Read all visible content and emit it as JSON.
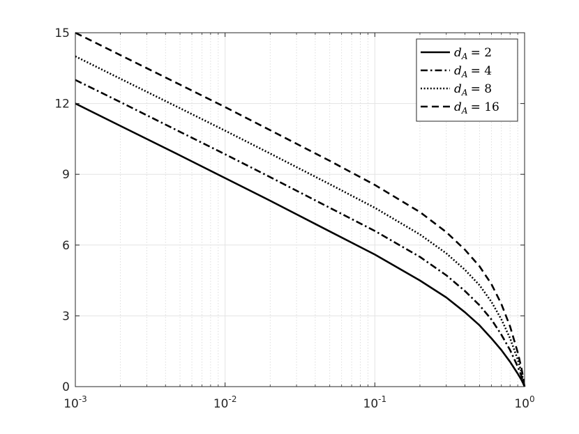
{
  "chart_data": {
    "type": "line",
    "title": "",
    "xlabel": "",
    "ylabel": "",
    "xscale": "log",
    "xlim": [
      0.001,
      1
    ],
    "ylim": [
      0,
      15
    ],
    "grid": true,
    "legend_position": "top-right",
    "x_ticks": [
      {
        "base": "10",
        "exp": "-3"
      },
      {
        "base": "10",
        "exp": "-2"
      },
      {
        "base": "10",
        "exp": "-1"
      },
      {
        "base": "10",
        "exp": "0"
      }
    ],
    "y_ticks": [
      "0",
      "3",
      "6",
      "9",
      "12",
      "15"
    ],
    "x": [
      0.001,
      0.002,
      0.005,
      0.01,
      0.02,
      0.05,
      0.1,
      0.2,
      0.3,
      0.4,
      0.5,
      0.6,
      0.7,
      0.8,
      0.9,
      0.95,
      0.98,
      0.995,
      1
    ],
    "series": [
      {
        "name": "d_A = 2",
        "legend_sub": "A",
        "legend_rhs": "= 2",
        "style": "solid",
        "values": [
          12.0,
          11.05,
          9.8,
          8.84,
          7.88,
          6.58,
          5.6,
          4.5,
          3.78,
          3.15,
          2.6,
          2.05,
          1.55,
          1.05,
          0.55,
          0.3,
          0.13,
          0.03,
          0.0
        ]
      },
      {
        "name": "d_A = 4",
        "legend_sub": "A",
        "legend_rhs": "= 4",
        "style": "dashdot",
        "values": [
          13.0,
          12.06,
          10.8,
          9.85,
          8.88,
          7.58,
          6.6,
          5.5,
          4.72,
          4.05,
          3.45,
          2.85,
          2.2,
          1.55,
          0.85,
          0.47,
          0.2,
          0.05,
          0.0
        ]
      },
      {
        "name": "d_A = 8",
        "legend_sub": "A",
        "legend_rhs": "= 8",
        "style": "dotted",
        "values": [
          14.0,
          13.05,
          11.8,
          10.85,
          9.88,
          8.58,
          7.58,
          6.45,
          5.65,
          4.95,
          4.3,
          3.6,
          2.85,
          2.05,
          1.15,
          0.64,
          0.28,
          0.07,
          0.0
        ]
      },
      {
        "name": "d_A = 16",
        "legend_sub": "A",
        "legend_rhs": "= 16",
        "style": "dashed",
        "values": [
          15.0,
          14.05,
          12.8,
          11.85,
          10.87,
          9.57,
          8.55,
          7.4,
          6.55,
          5.8,
          5.1,
          4.35,
          3.5,
          2.55,
          1.45,
          0.82,
          0.36,
          0.09,
          0.0
        ]
      }
    ]
  }
}
